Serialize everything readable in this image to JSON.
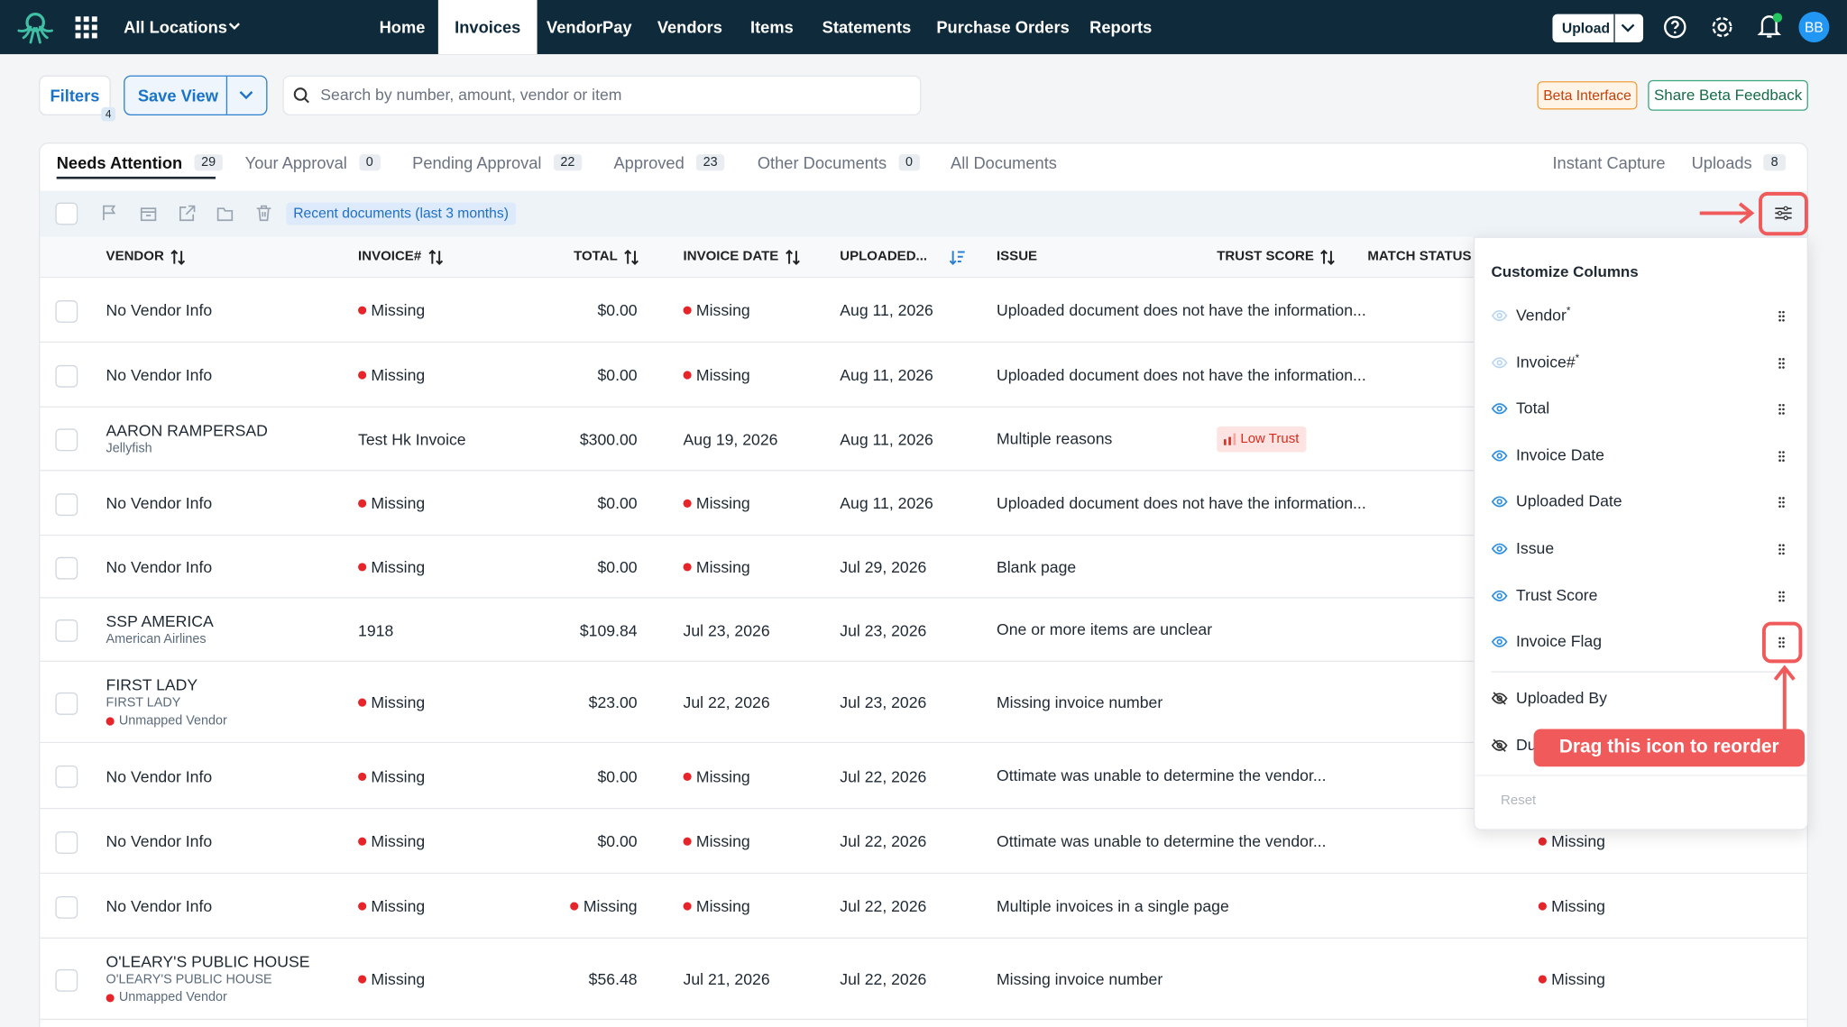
{
  "nav": {
    "location": "All Locations",
    "links": [
      "Home",
      "Invoices",
      "VendorPay",
      "Vendors",
      "Items",
      "Statements",
      "Purchase Orders",
      "Reports"
    ],
    "upload": "Upload",
    "avatar": "BB"
  },
  "toolbar": {
    "filters": "Filters",
    "filter_count": 4,
    "save_view": "Save View",
    "search_placeholder": "Search by number, amount, vendor or item",
    "beta": "Beta Interface",
    "feedback": "Share Beta Feedback"
  },
  "tabs": [
    {
      "label": "Needs Attention",
      "count": 29
    },
    {
      "label": "Your Approval",
      "count": 0
    },
    {
      "label": "Pending Approval",
      "count": 22
    },
    {
      "label": "Approved",
      "count": 23
    },
    {
      "label": "Other Documents",
      "count": 0
    },
    {
      "label": "All Documents"
    }
  ],
  "right_tabs": [
    {
      "label": "Instant Capture"
    },
    {
      "label": "Uploads",
      "count": 8
    }
  ],
  "filter_chip": "Recent documents (last 3 months)",
  "table": {
    "columns": [
      "VENDOR",
      "INVOICE#",
      "TOTAL",
      "INVOICE DATE",
      "UPLOADED...",
      "ISSUE",
      "TRUST SCORE",
      "MATCH STATUS"
    ],
    "rows": [
      {
        "vendor": [
          "No Vendor Info"
        ],
        "invoice": {
          "text": "Missing",
          "dot": "#e5252a"
        },
        "total": "$0.00",
        "invoice_date": {
          "text": "Missing",
          "dot": "#e5252a"
        },
        "uploaded": "Aug 11, 2026",
        "issue": "Uploaded document does not have the information..."
      },
      {
        "vendor": [
          "No Vendor Info"
        ],
        "invoice": {
          "text": "Missing",
          "dot": "#e5252a"
        },
        "total": "$0.00",
        "invoice_date": {
          "text": "Missing",
          "dot": "#e5252a"
        },
        "uploaded": "Aug 11, 2026",
        "issue": "Uploaded document does not have the information..."
      },
      {
        "vendor": [
          "AARON RAMPERSAD",
          "Jellyfish"
        ],
        "invoice": "Test Hk Invoice",
        "total": "$300.00",
        "invoice_date": "Aug 19, 2026",
        "uploaded": "Aug 11, 2026",
        "issue": "Multiple reasons",
        "trust": {
          "text": "Low Trust",
          "color": "#d92d20",
          "background": "#fde4e2"
        }
      },
      {
        "vendor": [
          "No Vendor Info"
        ],
        "invoice": {
          "text": "Missing",
          "dot": "#e5252a"
        },
        "total": "$0.00",
        "invoice_date": {
          "text": "Missing",
          "dot": "#e5252a"
        },
        "uploaded": "Aug 11, 2026",
        "issue": "Uploaded document does not have the information..."
      },
      {
        "vendor": [
          "No Vendor Info"
        ],
        "invoice": {
          "text": "Missing",
          "dot": "#e5252a"
        },
        "total": "$0.00",
        "invoice_date": {
          "text": "Missing",
          "dot": "#e5252a"
        },
        "uploaded": "Jul 29, 2026",
        "issue": "Blank page"
      },
      {
        "vendor": [
          "SSP AMERICA",
          "American Airlines"
        ],
        "invoice": "1918",
        "total": "$109.84",
        "invoice_date": "Jul 23, 2026",
        "uploaded": "Jul 23, 2026",
        "issue": "One or more items are unclear"
      },
      {
        "vendor": [
          "FIRST LADY",
          "FIRST LADY",
          {
            "text": "Unmapped Vendor",
            "dot": "#e5252a"
          }
        ],
        "invoice": {
          "text": "Missing",
          "dot": "#e5252a"
        },
        "total": "$23.00",
        "invoice_date": "Jul 22, 2026",
        "uploaded": "Jul 23, 2026",
        "issue": "Missing invoice number"
      },
      {
        "vendor": [
          "No Vendor Info"
        ],
        "invoice": {
          "text": "Missing",
          "dot": "#e5252a"
        },
        "total": "$0.00",
        "invoice_date": {
          "text": "Missing",
          "dot": "#e5252a"
        },
        "uploaded": "Jul 22, 2026",
        "issue": "Ottimate was unable to determine the vendor..."
      },
      {
        "vendor": [
          "No Vendor Info"
        ],
        "invoice": {
          "text": "Missing",
          "dot": "#e5252a"
        },
        "total": "$0.00",
        "invoice_date": {
          "text": "Missing",
          "dot": "#e5252a"
        },
        "uploaded": "Jul 22, 2026",
        "issue": "Ottimate was unable to determine the vendor...",
        "match": {
          "text": "Missing",
          "dot": "#e5252a"
        }
      },
      {
        "vendor": [
          "No Vendor Info"
        ],
        "invoice": {
          "text": "Missing",
          "dot": "#e5252a"
        },
        "total": {
          "text": "Missing",
          "dot": "#e5252a"
        },
        "invoice_date": {
          "text": "Missing",
          "dot": "#e5252a"
        },
        "uploaded": "Jul 22, 2026",
        "issue": "Multiple invoices in a single page",
        "match": {
          "text": "Missing",
          "dot": "#e5252a"
        }
      },
      {
        "vendor": [
          "O'LEARY'S PUBLIC HOUSE",
          "O'LEARY'S PUBLIC HOUSE",
          {
            "text": "Unmapped Vendor",
            "dot": "#e5252a"
          }
        ],
        "invoice": {
          "text": "Missing",
          "dot": "#e5252a"
        },
        "total": "$56.48",
        "invoice_date": "Jul 21, 2026",
        "uploaded": "Jul 22, 2026",
        "issue": "Missing invoice number",
        "match": {
          "text": "Missing",
          "dot": "#e5252a"
        }
      }
    ]
  },
  "customize": {
    "title": "Customize Columns",
    "items": [
      {
        "label": "Vendor",
        "mark": "*",
        "state": "locked"
      },
      {
        "label": "Invoice#",
        "mark": "*",
        "state": "locked"
      },
      {
        "label": "Total",
        "state": "shown"
      },
      {
        "label": "Invoice Date",
        "state": "shown"
      },
      {
        "label": "Uploaded Date",
        "state": "shown"
      },
      {
        "label": "Issue",
        "state": "shown"
      },
      {
        "label": "Trust Score",
        "state": "shown"
      },
      {
        "label": "Invoice Flag",
        "state": "shown"
      },
      {
        "label": "Uploaded By",
        "state": "hidden"
      },
      {
        "label": "Du",
        "state": "hidden"
      }
    ],
    "reset": "Reset",
    "callout": "Drag this icon to reorder"
  }
}
